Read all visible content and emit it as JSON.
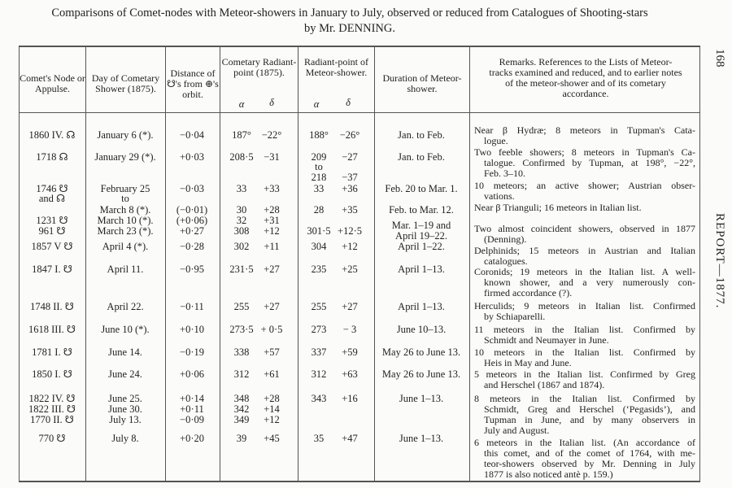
{
  "title": {
    "line1": "Comparisons of Comet-nodes with Meteor-showers in January to July, observed or reduced from Catalogues of Shooting-stars",
    "line2": "by Mr. DENNING."
  },
  "side": {
    "page_number": "168",
    "running_head": "REPORT—1877."
  },
  "headers": {
    "node": "Comet's Node or Appulse.",
    "day": "Day of Cometary Shower (1875).",
    "distance": "Distance of ☋'s from ⊕'s orbit.",
    "cometary": "Cometary Radiant-point (1875).",
    "radiant": "Radiant-point of Meteor-shower.",
    "duration": "Duration of Meteor-shower.",
    "remarks": "Remarks. References to the Lists of Meteor-tracks examined and reduced, and to earlier notes of the meteor-shower and of its cometary accordance.",
    "alpha": "α",
    "delta": "δ"
  },
  "rows": [
    {
      "node": "1860 IV. ☊",
      "day": "January 6 (*).",
      "dist": "−0·04",
      "ca": "187°",
      "cd": "−22°",
      "ra": "188°",
      "rd": "−26°",
      "dur": "Jan. to Feb."
    },
    {
      "node": "1718 ☊",
      "day": "January 29 (*).",
      "dist": "+0·03",
      "ca": "208·5",
      "cd": "−31",
      "ra": "209",
      "rd": "−27",
      "dur": "Jan. to Feb."
    },
    {
      "node": "",
      "day": "",
      "dist": "",
      "ca": "",
      "cd": "",
      "ra": "to",
      "rd": "",
      "dur": ""
    },
    {
      "node": "",
      "day": "",
      "dist": "",
      "ca": "",
      "cd": "",
      "ra": "218",
      "rd": "−37",
      "dur": ""
    },
    {
      "node": "1746 ☋",
      "day": "February 25",
      "dist": "−0·03",
      "ca": "33",
      "cd": "+33",
      "ra": "33",
      "rd": "+36",
      "dur": "Feb. 20 to Mar. 1."
    },
    {
      "node": "and ☊",
      "day": "to",
      "dist": "",
      "ca": "",
      "cd": "",
      "ra": "",
      "rd": "",
      "dur": ""
    },
    {
      "node": "",
      "day": "March 8 (*).",
      "dist": "(−0·01)",
      "ca": "30",
      "cd": "+28",
      "ra": "28",
      "rd": "+35",
      "dur": "Feb. to Mar. 12."
    },
    {
      "node": "1231 ☋",
      "day": "March 10 (*).",
      "dist": "(+0·06)",
      "ca": "32",
      "cd": "+31",
      "ra": "",
      "rd": "",
      "dur": ""
    },
    {
      "node": "961 ☋",
      "day": "March 23 (*).",
      "dist": "+0·27",
      "ca": "308",
      "cd": "+12",
      "ra": "301·5",
      "rd": "+12·5",
      "dur": "Mar. 1–19 and"
    },
    {
      "node": "",
      "day": "",
      "dist": "",
      "ca": "",
      "cd": "",
      "ra": "",
      "rd": "",
      "dur": "April 19–22."
    },
    {
      "node": "1857 V ☋",
      "day": "April 4 (*).",
      "dist": "−0·28",
      "ca": "302",
      "cd": "+11",
      "ra": "304",
      "rd": "+12",
      "dur": "April 1–22."
    },
    {
      "node": "1847 I. ☋",
      "day": "April 11.",
      "dist": "−0·95",
      "ca": "231·5",
      "cd": "+27",
      "ra": "235",
      "rd": "+25",
      "dur": "April 1–13."
    },
    {
      "node": "1748 II. ☋",
      "day": "April 22.",
      "dist": "−0·11",
      "ca": "255",
      "cd": "+27",
      "ra": "255",
      "rd": "+27",
      "dur": "April 1–13."
    },
    {
      "node": "1618 III. ☋",
      "day": "June 10 (*).",
      "dist": "+0·10",
      "ca": "273·5",
      "cd": "+ 0·5",
      "ra": "273",
      "rd": "− 3",
      "dur": "June 10–13."
    },
    {
      "node": "1781 I. ☋",
      "day": "June 14.",
      "dist": "−0·19",
      "ca": "338",
      "cd": "+57",
      "ra": "337",
      "rd": "+59",
      "dur": "May 26 to June 13."
    },
    {
      "node": "1850 I. ☋",
      "day": "June 24.",
      "dist": "+0·06",
      "ca": "312",
      "cd": "+61",
      "ra": "312",
      "rd": "+63",
      "dur": "May 26 to June 13."
    },
    {
      "node": "1822 IV. ☋",
      "day": "June 25.",
      "dist": "+0·14",
      "ca": "348",
      "cd": "+28",
      "ra": "343",
      "rd": "+16",
      "dur": "June 1–13."
    },
    {
      "node": "1822 III. ☋",
      "day": "June 30.",
      "dist": "+0·11",
      "ca": "342",
      "cd": "+14",
      "ra": "",
      "rd": "",
      "dur": ""
    },
    {
      "node": "1770 II. ☋",
      "day": "July 13.",
      "dist": "−0·09",
      "ca": "349",
      "cd": "+12",
      "ra": "",
      "rd": "",
      "dur": ""
    },
    {
      "node": "770 ☋",
      "day": "July 8.",
      "dist": "+0·20",
      "ca": "39",
      "cd": "+45",
      "ra": "35",
      "rd": "+47",
      "dur": "June 1–13."
    }
  ],
  "remarks": [
    [
      "Near β Hydræ; 8 meteors in Tupman's Cata-",
      "logue."
    ],
    [
      "Two feeble showers; 8 meteors in Tupman's Ca-",
      "talogue. Confirmed by Tupman, at 198°, −22°,",
      "Feb. 3–10."
    ],
    [
      "10 meteors; an active shower; Austrian obser-",
      "vations."
    ],
    [
      "Near β Trianguli; 16 meteors in Italian list."
    ],
    [
      "Two almost coincident showers, observed in 1877",
      "(Denning)."
    ],
    [
      "Delphinids; 15 meteors in Austrian and Italian",
      "catalogues."
    ],
    [
      "Coronids; 19 meteors in the Italian list. A well-",
      "known shower, and a very numerously con-",
      "firmed accordance (?)."
    ],
    [
      "Herculids; 9 meteors in Italian list. Confirmed",
      "by Schiaparelli."
    ],
    [
      "11 meteors in the Italian list. Confirmed by",
      "Schmidt and Neumayer in June."
    ],
    [
      "10 meteors in the Italian list. Confirmed by",
      "Heis in May and June."
    ],
    [
      "5 meteors in the Italian list. Confirmed by Greg",
      "and Herschel (1867 and 1874)."
    ],
    [
      "8 meteors in the Italian list. Confirmed by",
      "Schmidt, Greg and Herschel (‘Pegasids’), and",
      "Tupman in June, and by many observers in",
      "July and August."
    ],
    [
      "6 meteors in the Italian list. (An accordance of",
      "this comet, and of the comet of 1764, with me-",
      "teor-showers observed by Mr. Denning in July",
      "1877 is also noticed antè p. 159.)"
    ]
  ]
}
